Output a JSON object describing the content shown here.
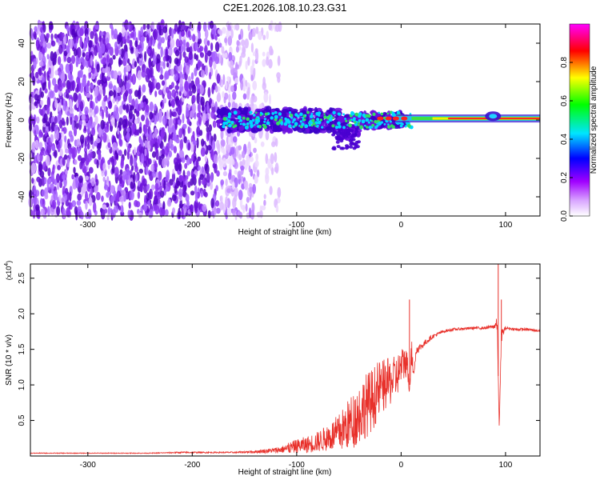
{
  "title": "C2E1.2026.108.10.23.G31",
  "colors": {
    "frame": "#000000",
    "snr_line": "#e8302a",
    "cloud": "#6a1ad8"
  },
  "chart_data": [
    {
      "type": "heatmap",
      "xlabel": "Height of straight line (km)",
      "ylabel": "Frequency (Hz)",
      "xlim": [
        -355,
        133
      ],
      "ylim": [
        -50,
        50
      ],
      "xticks": [
        -300,
        -200,
        -100,
        0,
        100
      ],
      "xtick_labels": [
        "-300",
        "-200",
        "-100",
        "0",
        "100"
      ],
      "yticks": [
        -40,
        -20,
        0,
        20,
        40
      ],
      "ytick_labels": [
        "-40",
        "-20",
        "0",
        "20",
        "40"
      ],
      "colorbar": {
        "label": "Normalized spectral amplitude",
        "range": [
          0,
          1
        ],
        "ticks": [
          0.0,
          0.2,
          0.4,
          0.6,
          0.8
        ],
        "tick_labels": [
          "0.0",
          "0.2",
          "0.4",
          "0.6",
          "0.8"
        ],
        "colormap": [
          "#ffffff",
          "#b000ff",
          "#0000ff",
          "#00e0ff",
          "#00ff00",
          "#ffff00",
          "#ff0000",
          "#ff00ff"
        ]
      },
      "grid": false
    },
    {
      "type": "line",
      "xlabel": "Height of straight line (km)",
      "ylabel": "SNR (10 * v/v)",
      "yscale_label": "(x10",
      "yscale_exp": "4",
      "yscale_suffix": ")",
      "xlim": [
        -355,
        133
      ],
      "ylim": [
        0,
        2.7
      ],
      "xticks": [
        -300,
        -200,
        -100,
        0,
        100
      ],
      "xtick_labels": [
        "-300",
        "-200",
        "-100",
        "0",
        "100"
      ],
      "yticks": [
        0.5,
        1.0,
        1.5,
        2.0,
        2.5
      ],
      "ytick_labels": [
        "0.5",
        "1.0",
        "1.5",
        "2.0",
        "2.5"
      ],
      "grid": false,
      "series": [
        {
          "x": [
            -355,
            -330,
            -300,
            -270,
            -240,
            -210,
            -180,
            -160,
            -140,
            -120,
            -110,
            -100,
            -90,
            -80,
            -70,
            -60,
            -50,
            -45,
            -40,
            -35,
            -30,
            -25,
            -20,
            -15,
            -10,
            -5,
            0,
            5,
            8,
            10,
            12,
            15,
            20,
            25,
            30,
            40,
            50,
            60,
            70,
            80,
            88,
            92,
            94,
            96,
            100,
            110,
            120,
            133
          ],
          "y": [
            0.04,
            0.04,
            0.04,
            0.04,
            0.04,
            0.05,
            0.05,
            0.05,
            0.06,
            0.08,
            0.1,
            0.14,
            0.16,
            0.2,
            0.26,
            0.32,
            0.45,
            0.52,
            0.6,
            0.7,
            0.75,
            0.85,
            0.95,
            1.0,
            1.05,
            1.1,
            1.25,
            1.35,
            1.0,
            1.45,
            1.2,
            1.5,
            1.55,
            1.62,
            1.68,
            1.75,
            1.78,
            1.79,
            1.8,
            1.8,
            1.82,
            1.85,
            0.4,
            1.7,
            1.8,
            1.78,
            1.78,
            1.76
          ],
          "noise": [
            0.005,
            0.005,
            0.005,
            0.005,
            0.005,
            0.01,
            0.01,
            0.01,
            0.02,
            0.04,
            0.06,
            0.08,
            0.1,
            0.12,
            0.16,
            0.22,
            0.3,
            0.34,
            0.36,
            0.38,
            0.38,
            0.36,
            0.34,
            0.3,
            0.28,
            0.26,
            0.22,
            0.2,
            0.1,
            0.18,
            0.1,
            0.06,
            0.05,
            0.04,
            0.03,
            0.02,
            0.02,
            0.02,
            0.02,
            0.02,
            0.03,
            0.1,
            0.0,
            0.1,
            0.02,
            0.02,
            0.02,
            0.02
          ]
        }
      ],
      "spikes": [
        {
          "x": 8,
          "y": 2.2
        },
        {
          "x": 93,
          "y": 2.7
        },
        {
          "x": 94,
          "y": 0.4
        },
        {
          "x": 96,
          "y": 2.2
        }
      ]
    }
  ]
}
